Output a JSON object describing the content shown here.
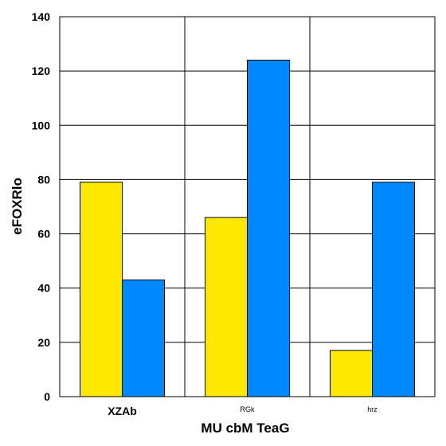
{
  "chart_data": {
    "type": "bar",
    "title": "",
    "xlabel": "MU cbM TeaG",
    "ylabel": "eFOXRlo",
    "categories": [
      "XZAb",
      "RGk",
      "hrz"
    ],
    "category_label_emphasis": [
      "large",
      "small",
      "small"
    ],
    "series": [
      {
        "values": [
          79,
          66,
          17
        ],
        "color": "#FFE800"
      },
      {
        "values": [
          43,
          124,
          79
        ],
        "color": "#0088FF"
      }
    ],
    "ylim": [
      0,
      140
    ],
    "yticks": [
      0,
      20,
      40,
      60,
      80,
      100,
      120,
      140
    ],
    "grid": true,
    "legend": "none"
  }
}
